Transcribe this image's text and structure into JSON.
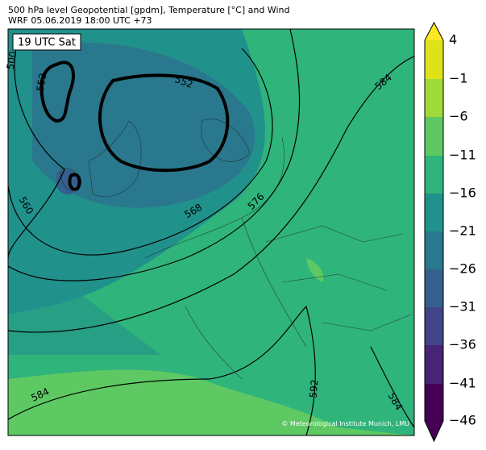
{
  "header": {
    "line1": "500 hPa level Geopotential [gpdm], Temperature [°C] and Wind",
    "line2": "WRF 05.06.2019 18:00 UTC +73"
  },
  "map": {
    "time_label": "19 UTC Sat",
    "contour_labels": [
      "500",
      "552",
      "552",
      "560",
      "568",
      "576",
      "584",
      "584",
      "592",
      "584"
    ],
    "credit": "© Meteorological Institute Munich, LMU"
  },
  "colorbar": {
    "labels": [
      "4",
      "−1",
      "−6",
      "−11",
      "−16",
      "−21",
      "−26",
      "−31",
      "−36",
      "−41",
      "−46"
    ]
  }
}
